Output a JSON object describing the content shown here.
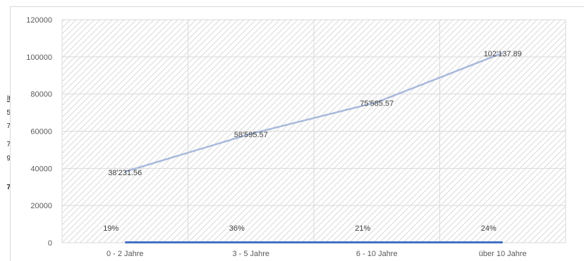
{
  "left_fragments": {
    "header": "lt",
    "rows": [
      "5",
      "7",
      "7",
      "9"
    ],
    "total": "7"
  },
  "chart_data": {
    "type": "line",
    "categories": [
      "0 - 2 Jahre",
      "3 - 5 Jahre",
      "6 - 10 Jahre",
      "über 10 Jahre"
    ],
    "ylim": [
      0,
      120000
    ],
    "yticks": [
      0,
      20000,
      40000,
      60000,
      80000,
      100000,
      120000
    ],
    "ytick_labels": [
      "0",
      "20000",
      "40000",
      "60000",
      "80000",
      "100000",
      "120000"
    ],
    "grid": true,
    "background_pattern": "diagonal-hatch",
    "series": [
      {
        "values": [
          38231.56,
          58595.57,
          75585.57,
          102137.89
        ],
        "labels": [
          "38'231.56",
          "58'595.57",
          "75'585.57",
          "102'137.89"
        ],
        "color": "#a9b9dc"
      },
      {
        "values": [
          0.19,
          0.36,
          0.21,
          0.24
        ],
        "labels": [
          "19%",
          "36%",
          "21%",
          "24%"
        ],
        "color": "#4472c4"
      }
    ]
  }
}
